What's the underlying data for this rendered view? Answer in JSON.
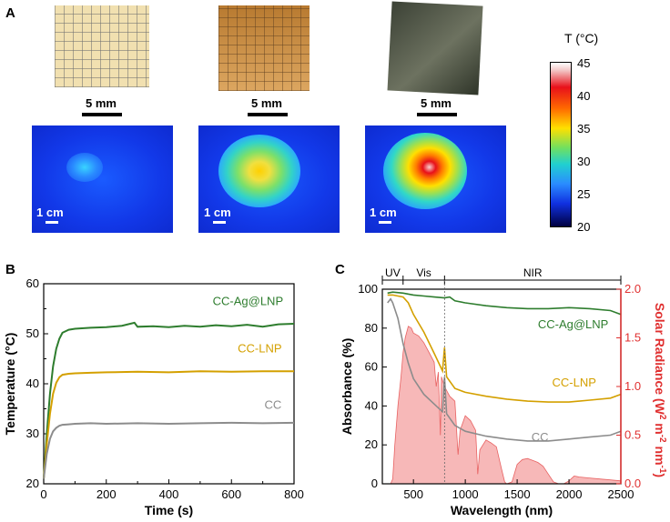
{
  "panels": {
    "a": "A",
    "b": "B",
    "c": "C"
  },
  "photos": {
    "scale_label": "5 mm"
  },
  "thermal": {
    "scale_label": "1 cm"
  },
  "colorbar": {
    "title": "T (°C)",
    "ticks": [
      "45",
      "40",
      "35",
      "30",
      "25",
      "20"
    ]
  },
  "chart_data": [
    {
      "type": "line",
      "xlabel": "Time (s)",
      "ylabel": "Temperature (°C)",
      "xlim": [
        0,
        800
      ],
      "ylim": [
        20,
        60
      ],
      "xticks": [
        0,
        200,
        400,
        600,
        800
      ],
      "yticks": [
        20,
        30,
        40,
        50,
        60
      ],
      "series": [
        {
          "name": "CC-Ag@LNP",
          "color": "#2e7d2e",
          "x": [
            0,
            10,
            20,
            30,
            40,
            50,
            60,
            80,
            100,
            150,
            200,
            250,
            290,
            300,
            350,
            400,
            450,
            500,
            550,
            600,
            650,
            700,
            750,
            800
          ],
          "y": [
            21,
            30,
            38,
            43.5,
            47,
            49,
            50.2,
            50.8,
            51,
            51.2,
            51.3,
            51.6,
            52.2,
            51.4,
            51.5,
            51.3,
            51.6,
            51.4,
            51.7,
            51.5,
            51.8,
            51.4,
            51.9,
            52
          ]
        },
        {
          "name": "CC-LNP",
          "color": "#d4a000",
          "x": [
            0,
            10,
            20,
            30,
            40,
            50,
            60,
            80,
            100,
            150,
            200,
            300,
            400,
            500,
            600,
            700,
            800
          ],
          "y": [
            21,
            28,
            34,
            38,
            40.2,
            41.3,
            41.8,
            42,
            42.1,
            42.2,
            42.3,
            42.4,
            42.3,
            42.5,
            42.4,
            42.5,
            42.5
          ]
        },
        {
          "name": "CC",
          "color": "#8c8c8c",
          "x": [
            0,
            10,
            20,
            30,
            40,
            50,
            60,
            80,
            100,
            150,
            200,
            300,
            400,
            500,
            600,
            700,
            800
          ],
          "y": [
            21,
            26,
            29,
            30.5,
            31.2,
            31.6,
            31.8,
            31.9,
            32,
            32.1,
            32,
            32.1,
            32,
            32.1,
            32.2,
            32.1,
            32.2
          ]
        }
      ]
    },
    {
      "type": "line",
      "xlabel": "Wavelength (nm)",
      "ylabel": "Absorbance (%)",
      "y2label_main": "Solar Radiance (W",
      "y2label_sup1": "2",
      "y2label_mid": " m",
      "y2label_sup2": "-2",
      "y2label_mid2": " nm",
      "y2label_sup3": "-1",
      "y2label_end": ")",
      "xlim": [
        200,
        2500
      ],
      "ylim": [
        0,
        100
      ],
      "y2lim": [
        0,
        2.0
      ],
      "xticks": [
        500,
        1000,
        1500,
        2000,
        2500
      ],
      "yticks": [
        0,
        20,
        40,
        60,
        80,
        100
      ],
      "y2ticks": [
        "0.0",
        "0.5",
        "1.0",
        "1.5",
        "2.0"
      ],
      "regions": [
        {
          "label": "UV",
          "from": 200,
          "to": 400
        },
        {
          "label": "Vis",
          "from": 400,
          "to": 800
        },
        {
          "label": "NIR",
          "from": 800,
          "to": 2500
        }
      ],
      "series": [
        {
          "name": "CC-Ag@LNP",
          "color": "#2e7d2e",
          "x": [
            250,
            300,
            400,
            500,
            600,
            700,
            800,
            850,
            900,
            1000,
            1200,
            1400,
            1600,
            1800,
            2000,
            2200,
            2400,
            2500
          ],
          "y": [
            98,
            98.5,
            98,
            97,
            96.5,
            96,
            95.5,
            96,
            94,
            93,
            91.5,
            90.5,
            90,
            90,
            90.5,
            90,
            89,
            87
          ]
        },
        {
          "name": "CC-LNP",
          "color": "#d4a000",
          "x": [
            250,
            300,
            400,
            450,
            500,
            600,
            700,
            780,
            800,
            820,
            900,
            1000,
            1200,
            1400,
            1600,
            1800,
            2000,
            2200,
            2400,
            2500
          ],
          "y": [
            97,
            97,
            96,
            93,
            87,
            78,
            67,
            58,
            70,
            55,
            49,
            47,
            45,
            43.5,
            42.5,
            42,
            42,
            43,
            44,
            46
          ]
        },
        {
          "name": "CC",
          "color": "#8c8c8c",
          "x": [
            250,
            280,
            300,
            350,
            400,
            450,
            500,
            600,
            700,
            780,
            800,
            820,
            900,
            1000,
            1200,
            1400,
            1600,
            1800,
            2000,
            2200,
            2400,
            2500
          ],
          "y": [
            93,
            95,
            93,
            85,
            72,
            62,
            54,
            46,
            41,
            37,
            55,
            36,
            30,
            27,
            24.5,
            23,
            22,
            22,
            23,
            24,
            25,
            27
          ]
        },
        {
          "name": "Solar Radiance",
          "color": "#e03030",
          "axis": "right",
          "fill": "#f7b8b8",
          "x": [
            280,
            300,
            320,
            350,
            380,
            400,
            420,
            450,
            480,
            500,
            550,
            600,
            650,
            700,
            720,
            740,
            760,
            770,
            800,
            850,
            900,
            930,
            950,
            1000,
            1050,
            1100,
            1120,
            1140,
            1200,
            1250,
            1300,
            1350,
            1380,
            1400,
            1450,
            1500,
            1550,
            1600,
            1650,
            1700,
            1750,
            1800,
            1850,
            1900,
            1950,
            2000,
            2050,
            2100,
            2200,
            2300,
            2400,
            2500
          ],
          "y": [
            0,
            0.05,
            0.4,
            0.8,
            1.1,
            1.35,
            1.5,
            1.62,
            1.6,
            1.55,
            1.52,
            1.45,
            1.35,
            1.25,
            1.0,
            1.15,
            0.5,
            1.1,
            1.0,
            0.9,
            0.85,
            0.3,
            0.55,
            0.7,
            0.65,
            0.55,
            0.1,
            0.35,
            0.45,
            0.42,
            0.38,
            0.15,
            0.02,
            0.0,
            0.02,
            0.2,
            0.25,
            0.26,
            0.24,
            0.22,
            0.18,
            0.1,
            0.02,
            0.0,
            0.0,
            0.03,
            0.08,
            0.07,
            0.06,
            0.05,
            0.04,
            0.03
          ]
        }
      ]
    }
  ]
}
